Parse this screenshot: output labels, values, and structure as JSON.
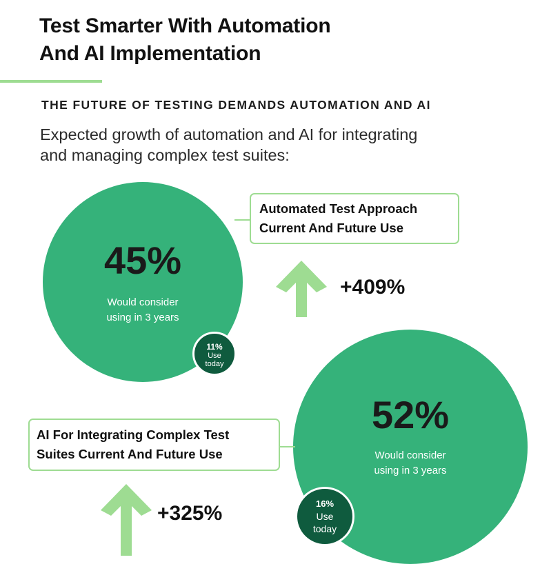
{
  "header": {
    "title_line1": "Test Smarter With Automation",
    "title_line2": "And AI Implementation",
    "kicker": "THE FUTURE OF TESTING DEMANDS AUTOMATION AND AI",
    "subtitle_line1": "Expected growth of automation and AI for integrating",
    "subtitle_line2": "and managing complex test suites:"
  },
  "stats": [
    {
      "label_line1": "Automated Test Approach",
      "label_line2": "Current And Future Use",
      "future_pct": "45%",
      "future_desc_line1": "Would consider",
      "future_desc_line2": "using in 3 years",
      "today_pct": "11%",
      "today_label_line1": "Use",
      "today_label_line2": "today",
      "growth": "+409%"
    },
    {
      "label_line1": "AI For Integrating Complex Test",
      "label_line2": "Suites Current And Future Use",
      "future_pct": "52%",
      "future_desc_line1": "Would consider",
      "future_desc_line2": "using in 3 years",
      "today_pct": "16%",
      "today_label_line1": "Use",
      "today_label_line2": "today",
      "growth": "+325%"
    }
  ],
  "colors": {
    "circle": "#35b27a",
    "badge": "#0f5b3e",
    "accent_light": "#9edc92"
  },
  "icons": [
    "up-arrow-icon",
    "up-arrow-icon"
  ]
}
